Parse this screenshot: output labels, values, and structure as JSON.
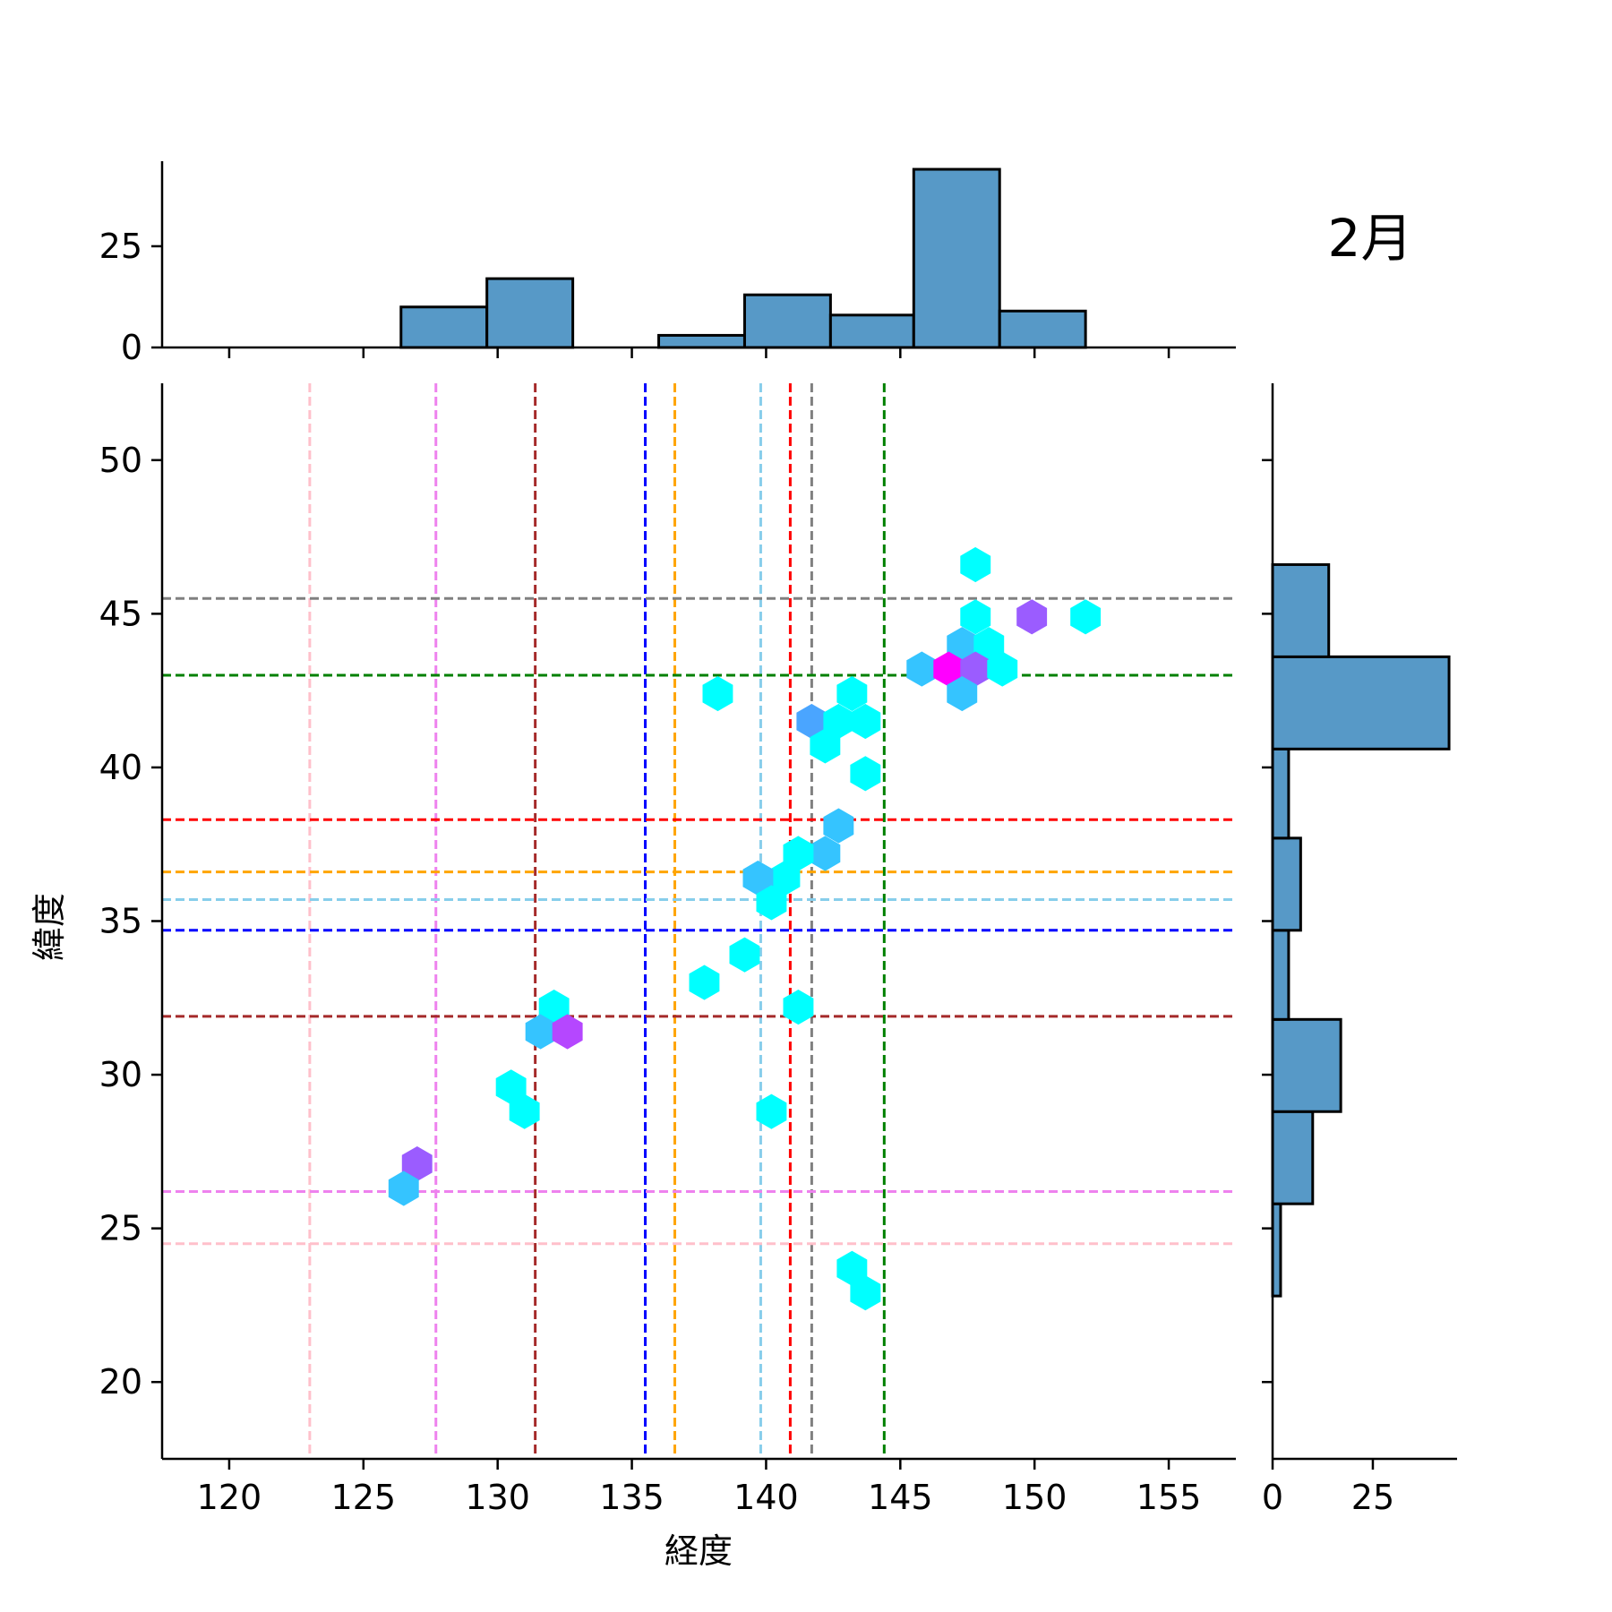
{
  "chart_data": {
    "type": "hexbin",
    "title": "2月",
    "xlabel": "経度",
    "ylabel": "緯度",
    "xlim": [
      117.5,
      157.5
    ],
    "ylim": [
      17.5,
      52.5
    ],
    "xticks": [
      120,
      125,
      130,
      135,
      140,
      145,
      150,
      155
    ],
    "yticks": [
      20,
      25,
      30,
      35,
      40,
      45,
      50
    ],
    "grid": false,
    "hexbins": [
      {
        "x": 147.8,
        "y": 46.6,
        "color": "#00ffff"
      },
      {
        "x": 147.8,
        "y": 44.9,
        "color": "#00ffff"
      },
      {
        "x": 149.9,
        "y": 44.9,
        "color": "#9b5cff"
      },
      {
        "x": 151.9,
        "y": 44.9,
        "color": "#00ffff"
      },
      {
        "x": 147.3,
        "y": 44.0,
        "color": "#35c4ff"
      },
      {
        "x": 148.3,
        "y": 44.0,
        "color": "#00ffff"
      },
      {
        "x": 145.8,
        "y": 43.2,
        "color": "#35c4ff"
      },
      {
        "x": 146.8,
        "y": 43.2,
        "color": "#ff00ff"
      },
      {
        "x": 147.8,
        "y": 43.2,
        "color": "#9b5cff"
      },
      {
        "x": 148.8,
        "y": 43.2,
        "color": "#00ffff"
      },
      {
        "x": 147.3,
        "y": 42.4,
        "color": "#35c4ff"
      },
      {
        "x": 138.2,
        "y": 42.4,
        "color": "#00ffff"
      },
      {
        "x": 143.2,
        "y": 42.4,
        "color": "#00ffff"
      },
      {
        "x": 141.7,
        "y": 41.5,
        "color": "#4aa5ff"
      },
      {
        "x": 142.7,
        "y": 41.5,
        "color": "#00ffff"
      },
      {
        "x": 143.7,
        "y": 41.5,
        "color": "#00ffff"
      },
      {
        "x": 142.2,
        "y": 40.7,
        "color": "#00ffff"
      },
      {
        "x": 143.7,
        "y": 39.8,
        "color": "#00ffff"
      },
      {
        "x": 142.7,
        "y": 38.1,
        "color": "#35c4ff"
      },
      {
        "x": 142.2,
        "y": 37.2,
        "color": "#35c4ff"
      },
      {
        "x": 141.2,
        "y": 37.2,
        "color": "#00ffff"
      },
      {
        "x": 140.7,
        "y": 36.4,
        "color": "#00ffff"
      },
      {
        "x": 139.7,
        "y": 36.4,
        "color": "#35c4ff"
      },
      {
        "x": 140.2,
        "y": 35.6,
        "color": "#00ffff"
      },
      {
        "x": 139.2,
        "y": 33.9,
        "color": "#00ffff"
      },
      {
        "x": 137.7,
        "y": 33.0,
        "color": "#00ffff"
      },
      {
        "x": 132.1,
        "y": 32.2,
        "color": "#00ffff"
      },
      {
        "x": 141.2,
        "y": 32.2,
        "color": "#00ffff"
      },
      {
        "x": 131.6,
        "y": 31.4,
        "color": "#35c4ff"
      },
      {
        "x": 132.6,
        "y": 31.4,
        "color": "#b547ff"
      },
      {
        "x": 130.5,
        "y": 29.6,
        "color": "#00ffff"
      },
      {
        "x": 131.0,
        "y": 28.8,
        "color": "#00ffff"
      },
      {
        "x": 140.2,
        "y": 28.8,
        "color": "#00ffff"
      },
      {
        "x": 127.0,
        "y": 27.1,
        "color": "#9b5cff"
      },
      {
        "x": 126.5,
        "y": 26.3,
        "color": "#35c4ff"
      },
      {
        "x": 143.2,
        "y": 23.7,
        "color": "#00ffff"
      },
      {
        "x": 143.7,
        "y": 22.9,
        "color": "#00ffff"
      }
    ],
    "vlines": [
      {
        "x": 123.0,
        "color": "#ffc0cb"
      },
      {
        "x": 127.7,
        "color": "#ee82ee"
      },
      {
        "x": 131.4,
        "color": "#a52a2a"
      },
      {
        "x": 135.5,
        "color": "#0000ff"
      },
      {
        "x": 136.6,
        "color": "#ffa500"
      },
      {
        "x": 139.8,
        "color": "#87ceeb"
      },
      {
        "x": 140.9,
        "color": "#ff0000"
      },
      {
        "x": 141.7,
        "color": "#808080"
      },
      {
        "x": 144.4,
        "color": "#008000"
      }
    ],
    "hlines": [
      {
        "y": 45.5,
        "color": "#808080"
      },
      {
        "y": 43.0,
        "color": "#008000"
      },
      {
        "y": 38.3,
        "color": "#ff0000"
      },
      {
        "y": 36.6,
        "color": "#ffa500"
      },
      {
        "y": 35.7,
        "color": "#87ceeb"
      },
      {
        "y": 34.7,
        "color": "#0000ff"
      },
      {
        "y": 31.9,
        "color": "#a52a2a"
      },
      {
        "y": 26.2,
        "color": "#ee82ee"
      },
      {
        "y": 24.5,
        "color": "#ffc0cb"
      }
    ],
    "x_histogram": {
      "bin_edges": [
        126.4,
        129.6,
        132.8,
        136.0,
        139.2,
        142.4,
        145.5,
        148.7,
        151.9
      ],
      "counts": [
        10,
        17,
        0,
        3,
        13,
        8,
        44,
        9
      ],
      "ylim": [
        0,
        46
      ],
      "yticks": [
        0,
        25
      ],
      "color": "#5799c7"
    },
    "y_histogram": {
      "bin_edges": [
        22.8,
        25.8,
        28.8,
        31.8,
        34.7,
        37.7,
        40.6,
        43.6,
        46.6
      ],
      "counts": [
        2,
        10,
        17,
        4,
        7,
        4,
        44,
        14
      ],
      "xlim": [
        0,
        46
      ],
      "xticks": [
        0,
        25
      ],
      "color": "#5799c7"
    }
  }
}
